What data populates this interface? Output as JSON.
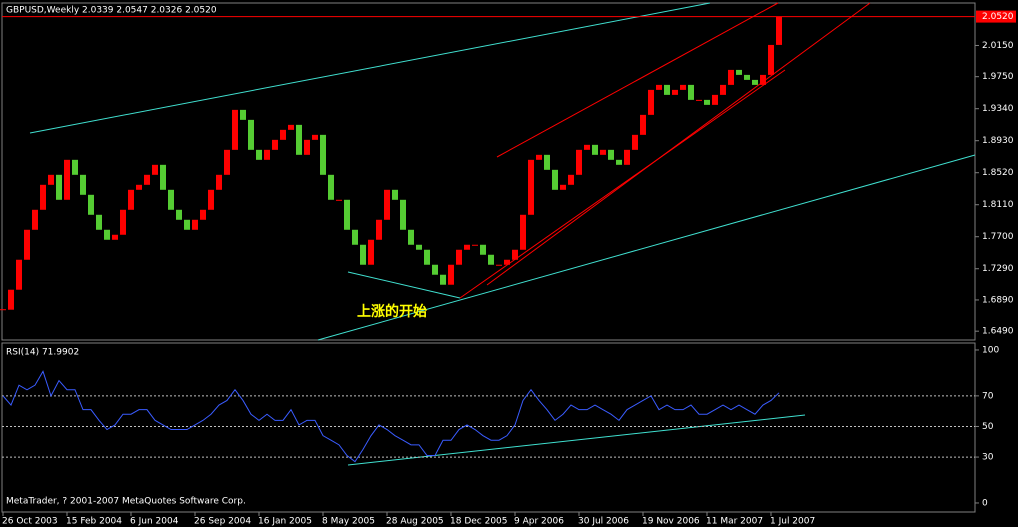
{
  "chart_data": [
    {
      "type": "candlestick",
      "title": "GBPUSD,Weekly  2.0339 2.0547 2.0326 2.0520",
      "xticks": [
        {
          "value": 0,
          "label": "26 Oct 2003"
        },
        {
          "value": 8,
          "label": "15 Feb 2004"
        },
        {
          "value": 16,
          "label": "6 Jun 2004"
        },
        {
          "value": 24,
          "label": "26 Sep 2004"
        },
        {
          "value": 32,
          "label": "16 Jan 2005"
        },
        {
          "value": 40,
          "label": "8 May 2005"
        },
        {
          "value": 48,
          "label": "28 Aug 2005"
        },
        {
          "value": 56,
          "label": "18 Dec 2005"
        },
        {
          "value": 64,
          "label": "9 Apr 2006"
        },
        {
          "value": 72,
          "label": "30 Jul 2006"
        },
        {
          "value": 80,
          "label": "19 Nov 2006"
        },
        {
          "value": 88,
          "label": "11 Mar 2007"
        },
        {
          "value": 96,
          "label": "1 Jul 2007"
        }
      ],
      "close": [
        1.6765,
        1.7021,
        1.7405,
        1.7789,
        1.8045,
        1.8365,
        1.8493,
        1.8173,
        1.8685,
        1.8493,
        1.8237,
        1.7981,
        1.7789,
        1.7661,
        1.7725,
        1.8045,
        1.8301,
        1.8365,
        1.8493,
        1.8621,
        1.8301,
        1.8045,
        1.7917,
        1.7789,
        1.7917,
        1.8045,
        1.8301,
        1.8493,
        1.8813,
        1.9325,
        1.9197,
        1.8813,
        1.8685,
        1.8813,
        1.8941,
        1.9069,
        1.9133,
        1.8749,
        1.8941,
        1.9005,
        1.8493,
        1.8173,
        1.8173,
        1.7789,
        1.7597,
        1.7341,
        1.7661,
        1.7917,
        1.8301,
        1.8173,
        1.7789,
        1.7597,
        1.7533,
        1.7341,
        1.7213,
        1.7085,
        1.7341,
        1.7533,
        1.7597,
        1.7597,
        1.7469,
        1.7341,
        1.7341,
        1.7405,
        1.7533,
        1.7981,
        1.8685,
        1.8749,
        1.8557,
        1.8301,
        1.8365,
        1.8493,
        1.8813,
        1.8877,
        1.8749,
        1.8813,
        1.8685,
        1.8621,
        1.8813,
        1.9005,
        1.9261,
        1.9581,
        1.9645,
        1.9517,
        1.9581,
        1.9645,
        1.9453,
        1.9453,
        1.9389,
        1.9517,
        1.9645,
        1.9837,
        1.9773,
        1.9709,
        1.9645,
        1.9773,
        2.0157,
        2.052
      ],
      "up_color": "#ff0000",
      "down_color": "#55cc33",
      "current_price": {
        "value": 2.052,
        "label": "2.0520"
      },
      "ylim": [
        1.6377,
        2.0694
      ],
      "yticks": [
        {
          "value": 2.015,
          "label": "2.0150"
        },
        {
          "value": 1.975,
          "label": "1.9750"
        },
        {
          "value": 1.934,
          "label": "1.9340"
        },
        {
          "value": 1.893,
          "label": "1.8930"
        },
        {
          "value": 1.852,
          "label": "1.8520"
        },
        {
          "value": 1.811,
          "label": "1.8110"
        },
        {
          "value": 1.77,
          "label": "1.7700"
        },
        {
          "value": 1.729,
          "label": "1.7290"
        },
        {
          "value": 1.689,
          "label": "1.6890"
        },
        {
          "value": 1.649,
          "label": "1.6490"
        }
      ],
      "annotation": "上涨的开始"
    },
    {
      "type": "line",
      "title": "RSI(14) 71.9902",
      "color": "#3a5cff",
      "values": [
        70,
        64,
        77,
        74,
        77,
        86,
        70,
        80,
        74,
        74,
        61,
        61,
        54,
        48,
        51,
        58,
        58,
        61,
        61,
        54,
        51,
        48,
        48,
        48,
        51,
        54,
        58,
        64,
        67,
        74,
        67,
        58,
        54,
        58,
        54,
        54,
        61,
        51,
        54,
        54,
        44,
        41,
        38,
        31,
        27,
        35,
        44,
        51,
        48,
        44,
        41,
        38,
        38,
        31,
        31,
        41,
        41,
        48,
        51,
        48,
        44,
        41,
        41,
        44,
        51,
        67,
        74,
        67,
        61,
        54,
        58,
        64,
        61,
        61,
        64,
        61,
        58,
        54,
        61,
        64,
        67,
        70,
        61,
        64,
        61,
        61,
        64,
        58,
        58,
        61,
        64,
        61,
        64,
        61,
        58,
        64,
        67,
        71.9902
      ],
      "ylim": [
        -5.9,
        103.9
      ],
      "yticks": [
        0,
        30,
        50,
        70,
        100
      ],
      "grid_levels": [
        30,
        50,
        70
      ]
    }
  ],
  "footer": "MetaTrader, ? 2001-2007 MetaQuotes Software Corp."
}
